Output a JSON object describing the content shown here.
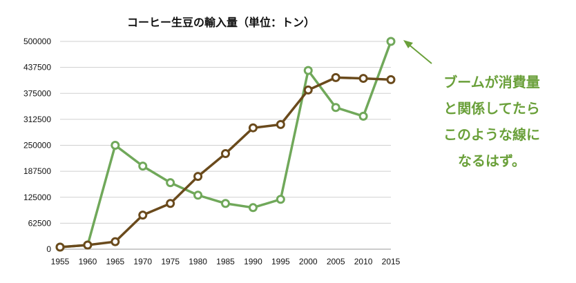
{
  "chart_data": {
    "type": "line",
    "title": "コーヒー生豆の輸入量（単位：トン）",
    "x": [
      1955,
      1960,
      1965,
      1970,
      1975,
      1980,
      1985,
      1990,
      1995,
      2000,
      2005,
      2010,
      2015
    ],
    "yticks": [
      "0",
      "62500",
      "125000",
      "187500",
      "250000",
      "312500",
      "375000",
      "437500",
      "500000"
    ],
    "ylim": [
      0,
      500000
    ],
    "grid": true,
    "series": [
      {
        "color": "#6a4a1c",
        "values": [
          5000,
          10000,
          18000,
          82000,
          110000,
          175000,
          230000,
          292000,
          300000,
          383000,
          413000,
          411000,
          408000
        ]
      },
      {
        "color": "#70a85a",
        "values": [
          5000,
          10000,
          250000,
          200000,
          160000,
          130000,
          110000,
          100000,
          120000,
          430000,
          341000,
          320000,
          500000
        ]
      }
    ]
  },
  "annotation": {
    "lines": [
      "ブームが消費量",
      "と関係してたら",
      "このような線に",
      "なるはず。"
    ],
    "color": "#6aa03a"
  }
}
